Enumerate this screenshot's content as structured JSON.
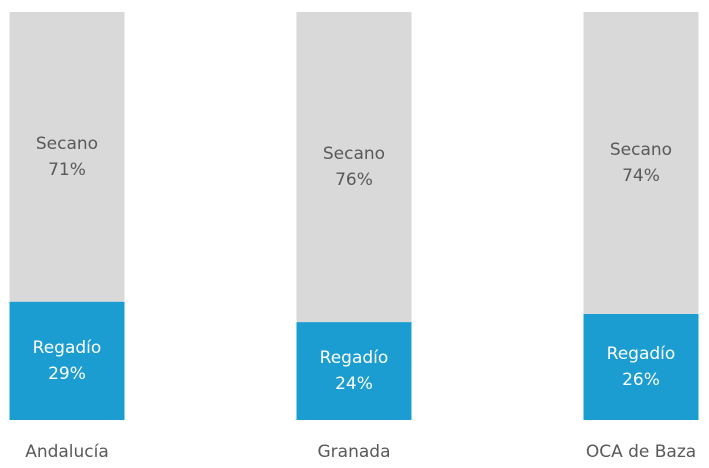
{
  "chart_data": {
    "type": "stacked_bar",
    "categories": [
      "Andalucía",
      "Granada",
      "OCA de Baza"
    ],
    "series": [
      {
        "name": "Regadío",
        "color": "#1b9dd1",
        "values": [
          29,
          24,
          26
        ],
        "value_labels": [
          "29%",
          "24%",
          "26%"
        ]
      },
      {
        "name": "Secano",
        "color": "#d9d9d9",
        "values": [
          71,
          76,
          74
        ],
        "value_labels": [
          "71%",
          "76%",
          "74%"
        ]
      }
    ]
  }
}
